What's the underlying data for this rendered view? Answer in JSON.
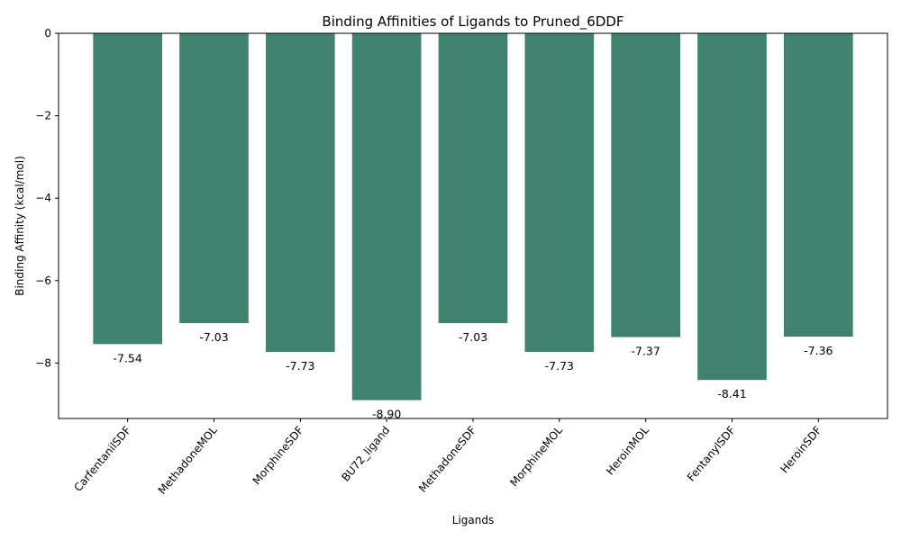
{
  "chart_data": {
    "type": "bar",
    "title": "Binding Affinities of Ligands to Pruned_6DDF",
    "xlabel": "Ligands",
    "ylabel": "Binding Affinity (kcal/mol)",
    "categories": [
      "CarfentanilSDF",
      "MethadoneMOL",
      "MorphineSDF",
      "BU72_ligand",
      "MethadoneSDF",
      "MorphineMOL",
      "HeroinMOL",
      "FentanylSDF",
      "HeroinSDF"
    ],
    "values": [
      -7.54,
      -7.03,
      -7.73,
      -8.9,
      -7.03,
      -7.73,
      -7.37,
      -8.41,
      -7.36
    ],
    "data_labels": [
      "-7.54",
      "-7.03",
      "-7.73",
      "-8.90",
      "-7.03",
      "-7.73",
      "-7.37",
      "-8.41",
      "-7.36"
    ],
    "yticks": [
      0,
      -2,
      -4,
      -6,
      -8
    ],
    "ytick_labels": [
      "0",
      "−2",
      "−4",
      "−6",
      "−8"
    ],
    "ylim": [
      -9.345,
      0
    ],
    "bar_color": "#408270",
    "grid": false,
    "legend": "none"
  }
}
